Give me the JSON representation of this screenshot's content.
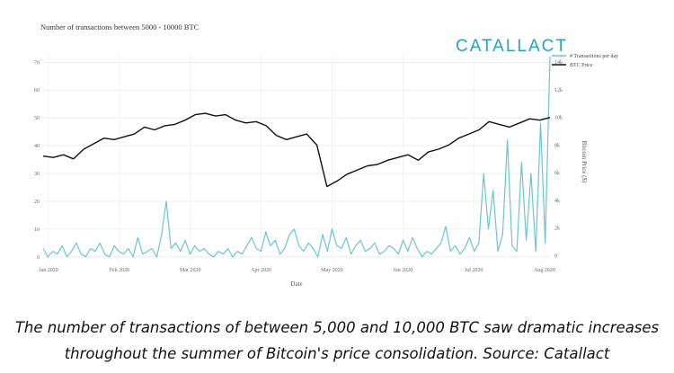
{
  "chart_data": {
    "type": "line",
    "title": "Number of transactions between 5000 - 10000 BTC",
    "logo": "CATALLACT",
    "xlabel": "Date",
    "ylabel_left": "",
    "ylabel_right": "Bitcoin Price ($)",
    "x_ticks": [
      "Jan 2020",
      "Feb 2020",
      "Mar 2020",
      "Apr 2020",
      "May 2020",
      "Jun 2020",
      "Jul 2020",
      "Aug 2020"
    ],
    "left_ticks": [
      0,
      10,
      20,
      30,
      40,
      50,
      60,
      70
    ],
    "left_tick_labels": [
      "0",
      "10",
      "20",
      "30",
      "40",
      "50",
      "60",
      "70"
    ],
    "right_ticks": [
      0,
      2000,
      4000,
      6000,
      8000,
      10000,
      12000,
      14000
    ],
    "right_tick_labels": [
      "0",
      "2k",
      "4k",
      "6k",
      "8k",
      "10k",
      "12k",
      "14k"
    ],
    "ylim_left": [
      -2,
      73
    ],
    "ylim_right": [
      -500,
      14600
    ],
    "legend": [
      "# Transactions per day",
      "BTC Price"
    ],
    "colors": {
      "transactions": "#6cc5d2",
      "price": "#111111",
      "logo": "#2aa3b8"
    },
    "series": [
      {
        "name": "# Transactions per day",
        "axis": "left",
        "color": "#6cc5d2",
        "x": [
          0,
          2,
          4,
          6,
          8,
          10,
          12,
          14,
          16,
          18,
          20,
          22,
          24,
          26,
          28,
          30,
          32,
          34,
          36,
          38,
          40,
          42,
          44,
          46,
          48,
          50,
          52,
          54,
          56,
          58,
          60,
          62,
          64,
          66,
          68,
          70,
          72,
          74,
          76,
          78,
          80,
          82,
          84,
          86,
          88,
          90,
          92,
          94,
          96,
          98,
          100,
          102,
          104,
          106,
          108,
          110,
          112,
          114,
          116,
          118,
          120,
          122,
          124,
          126,
          128,
          130,
          132,
          134,
          136,
          138,
          140,
          142,
          144,
          146,
          148,
          150,
          152,
          154,
          156,
          158,
          160,
          162,
          164,
          166,
          168,
          170,
          172,
          174,
          176,
          178,
          180,
          182,
          184,
          186,
          188,
          190,
          192,
          194,
          196,
          198,
          200,
          202,
          204,
          206,
          208,
          210,
          212,
          214
        ],
        "values": [
          3,
          0,
          2,
          1,
          4,
          0,
          2,
          5,
          1,
          0,
          3,
          2,
          5,
          1,
          0,
          4,
          2,
          1,
          3,
          0,
          7,
          1,
          2,
          3,
          0,
          8,
          20,
          3,
          5,
          2,
          6,
          1,
          4,
          2,
          3,
          1,
          0,
          2,
          1,
          3,
          0,
          2,
          1,
          4,
          7,
          3,
          2,
          9,
          4,
          6,
          1,
          3,
          8,
          10,
          4,
          2,
          5,
          3,
          0,
          8,
          2,
          10,
          4,
          3,
          7,
          1,
          4,
          6,
          2,
          3,
          5,
          1,
          2,
          4,
          3,
          1,
          6,
          2,
          7,
          3,
          0,
          2,
          1,
          3,
          5,
          11,
          2,
          4,
          1,
          3,
          7,
          2,
          5,
          30,
          10,
          24,
          2,
          8,
          42,
          4,
          2,
          34,
          6,
          30,
          2,
          48,
          5,
          72
        ],
        "description": "Daily count of transactions between 5,000 and 10,000 BTC, January to early August 2020"
      },
      {
        "name": "BTC Price",
        "axis": "right",
        "color": "#111111",
        "x": [
          0,
          1,
          2,
          3,
          4,
          5,
          6,
          7,
          8,
          9,
          10,
          11,
          12,
          13,
          14,
          15,
          16,
          17,
          18,
          19,
          20,
          21,
          22,
          23,
          24,
          25,
          26,
          27,
          28,
          29,
          30,
          31,
          32,
          33,
          34,
          35,
          36,
          37,
          38,
          39,
          40,
          41,
          42,
          43,
          44,
          45,
          46,
          47,
          48,
          49,
          50
        ],
        "values": [
          7200,
          7100,
          7300,
          7000,
          7700,
          8100,
          8500,
          8400,
          8600,
          8800,
          9300,
          9100,
          9400,
          9500,
          9800,
          10200,
          10300,
          10100,
          10200,
          9800,
          9600,
          9700,
          9400,
          8700,
          8400,
          8600,
          8800,
          8000,
          5000,
          5400,
          5900,
          6200,
          6500,
          6600,
          6900,
          7100,
          7300,
          6900,
          7500,
          7700,
          8000,
          8500,
          8800,
          9100,
          9700,
          9500,
          9300,
          9600,
          9900,
          9800,
          10000
        ],
        "description": "Bitcoin price in USD, January to early August 2020 (approximate)"
      }
    ]
  },
  "caption": {
    "line1": "The number of transactions of between 5,000 and 10,000 BTC saw dramatic increases",
    "line2": "throughout the summer of Bitcoin's price consolidation. Source: Catallact"
  }
}
